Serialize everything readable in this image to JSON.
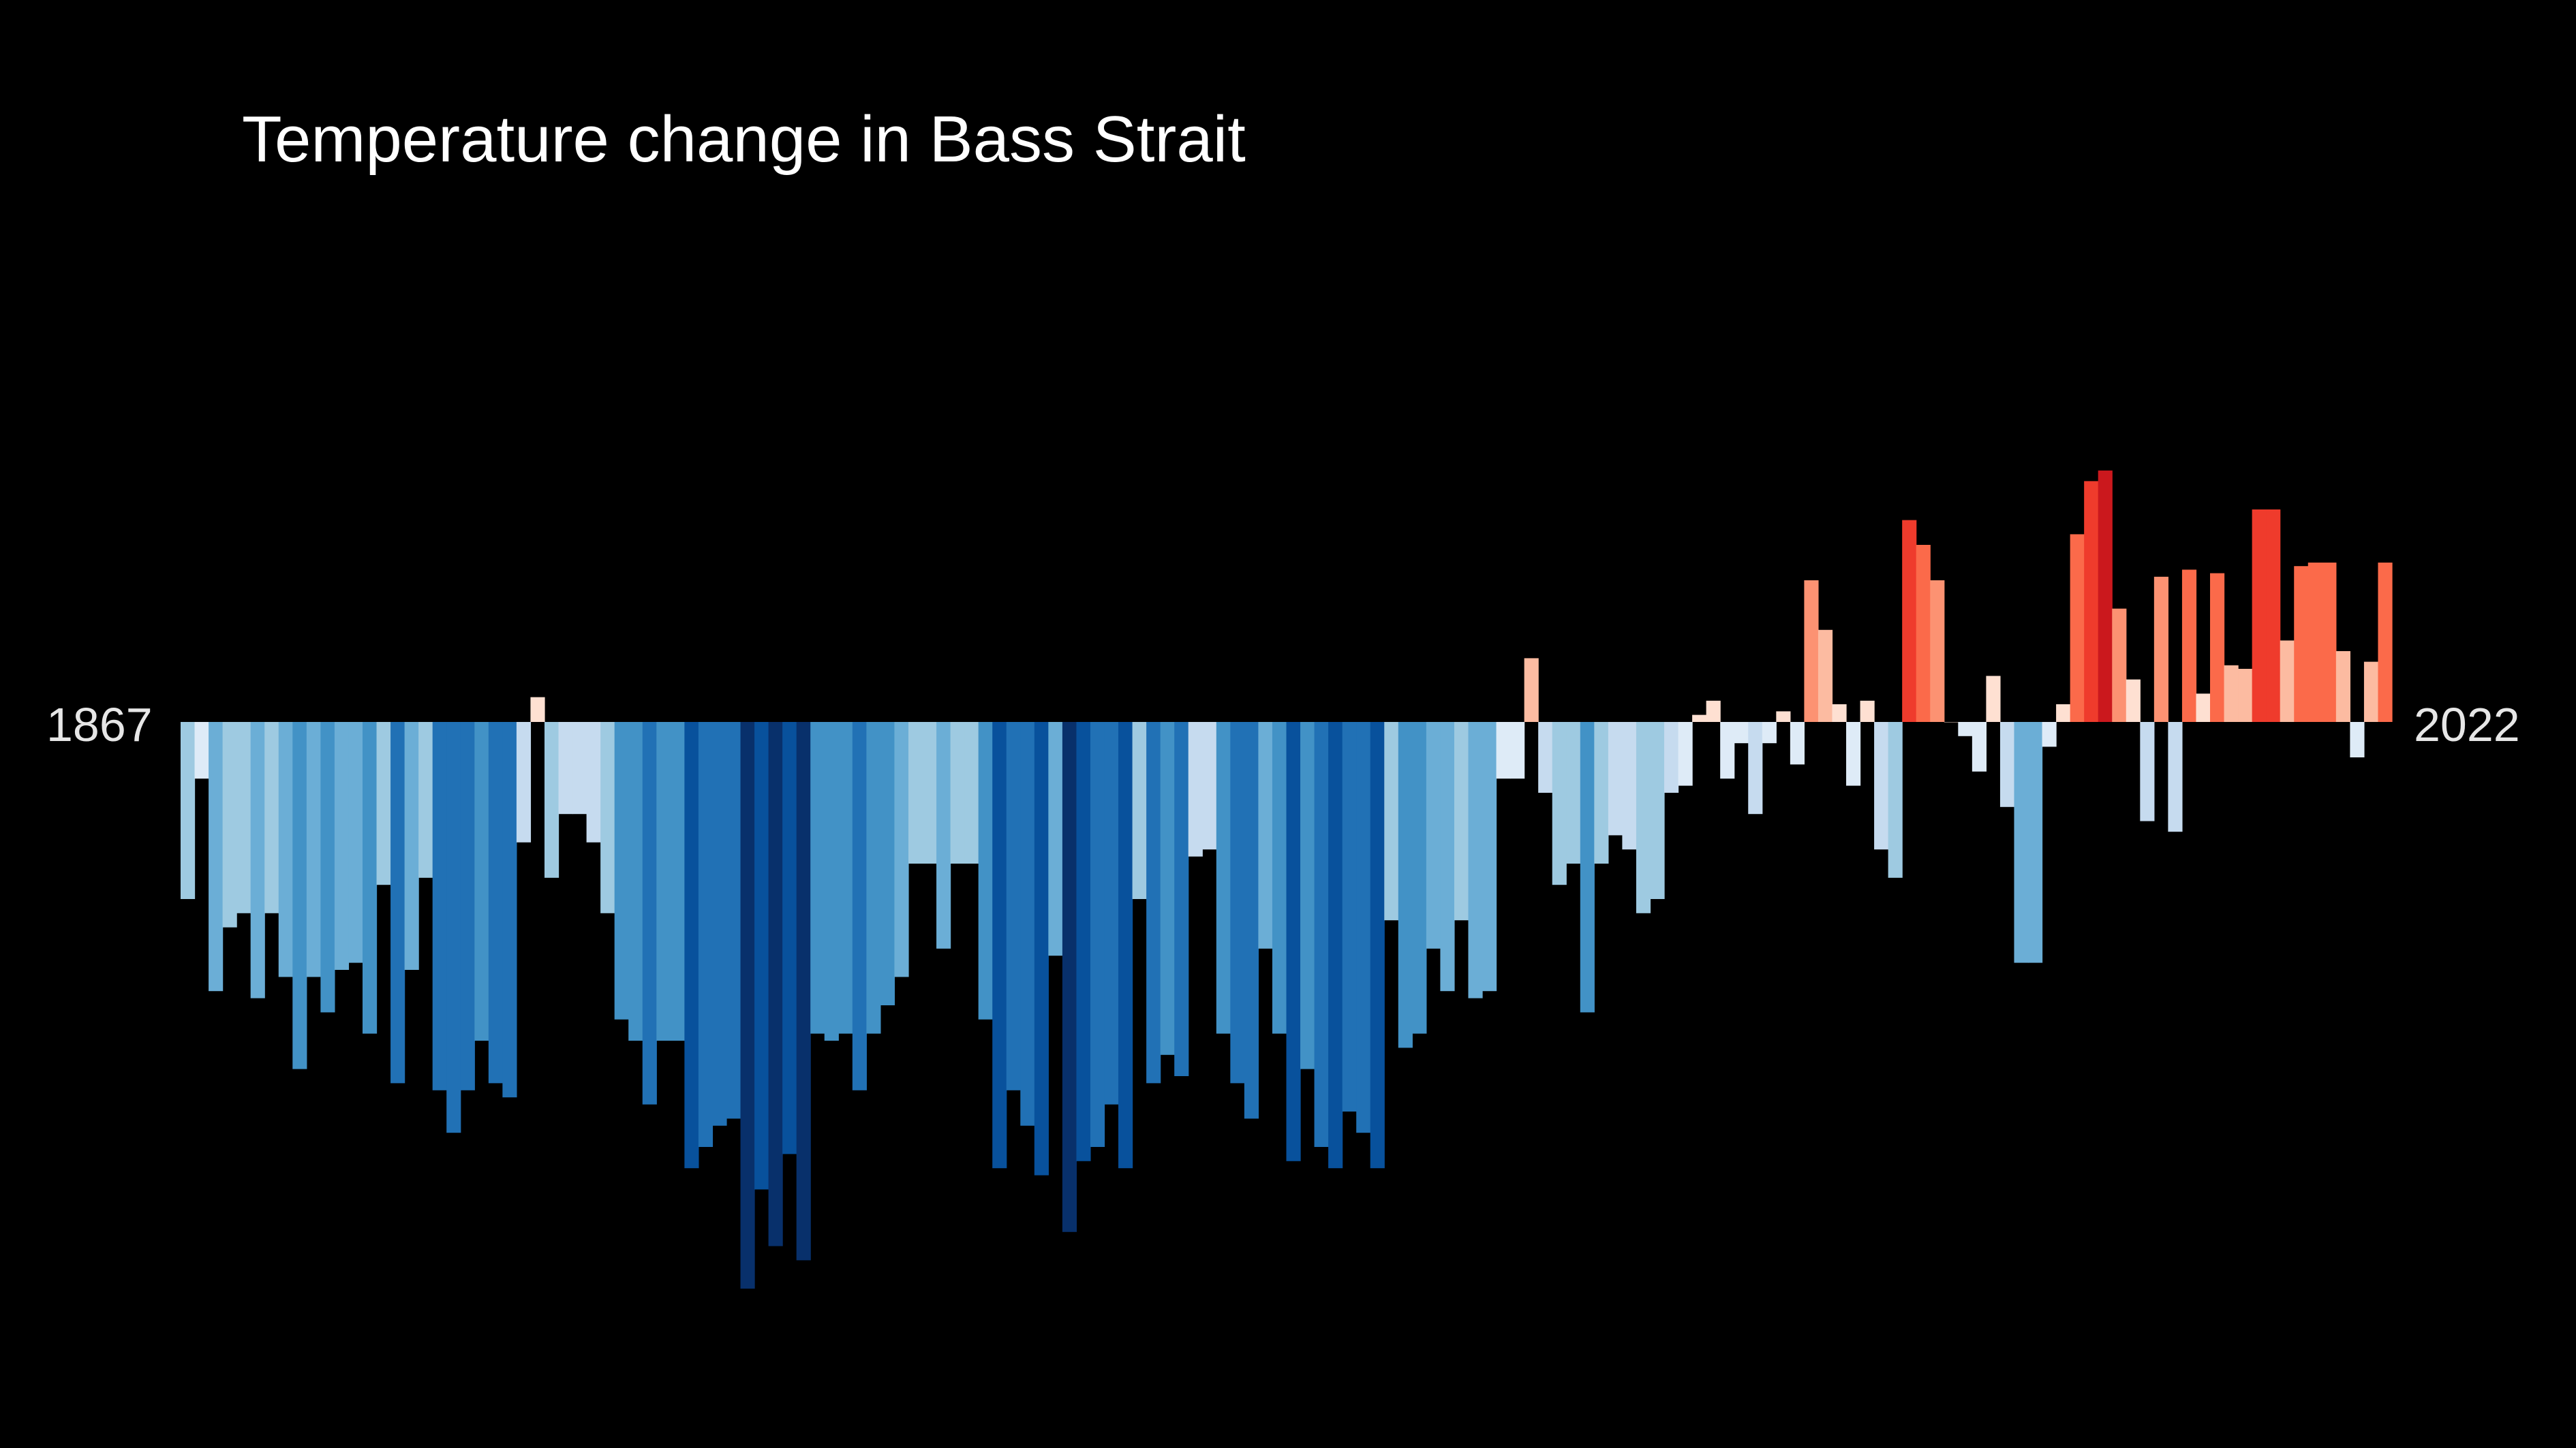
{
  "chart_data": {
    "type": "bar",
    "title": "Temperature change in Bass Strait",
    "start_year": "1867",
    "end_year": "2022",
    "x": {
      "start": 1867,
      "end": 2022
    },
    "ylim": [
      -0.8,
      0.34
    ],
    "grid": false,
    "legend": "none",
    "values": [
      -0.25,
      -0.08,
      -0.38,
      -0.29,
      -0.27,
      -0.39,
      -0.27,
      -0.36,
      -0.49,
      -0.36,
      -0.41,
      -0.35,
      -0.34,
      -0.44,
      -0.23,
      -0.51,
      -0.35,
      -0.22,
      -0.52,
      -0.58,
      -0.52,
      -0.45,
      -0.51,
      -0.53,
      -0.17,
      0.035,
      -0.22,
      -0.13,
      -0.13,
      -0.17,
      -0.27,
      -0.42,
      -0.45,
      -0.54,
      -0.45,
      -0.45,
      -0.63,
      -0.6,
      -0.57,
      -0.56,
      -0.8,
      -0.66,
      -0.74,
      -0.61,
      -0.76,
      -0.44,
      -0.45,
      -0.44,
      -0.52,
      -0.44,
      -0.4,
      -0.36,
      -0.2,
      -0.2,
      -0.32,
      -0.2,
      -0.2,
      -0.42,
      -0.63,
      -0.52,
      -0.57,
      -0.64,
      -0.33,
      -0.72,
      -0.62,
      -0.6,
      -0.54,
      -0.63,
      -0.25,
      -0.51,
      -0.47,
      -0.5,
      -0.19,
      -0.18,
      -0.44,
      -0.51,
      -0.56,
      -0.32,
      -0.44,
      -0.62,
      -0.49,
      -0.6,
      -0.63,
      -0.55,
      -0.58,
      -0.63,
      -0.28,
      -0.46,
      -0.44,
      -0.32,
      -0.38,
      -0.28,
      -0.39,
      -0.38,
      -0.08,
      -0.08,
      0.09,
      -0.1,
      -0.23,
      -0.2,
      -0.41,
      -0.2,
      -0.16,
      -0.18,
      -0.27,
      -0.25,
      -0.1,
      -0.09,
      0.01,
      0.03,
      -0.08,
      -0.03,
      -0.13,
      -0.03,
      0.015,
      -0.06,
      0.2,
      0.13,
      0.025,
      -0.09,
      0.03,
      -0.18,
      -0.22,
      0.285,
      0.25,
      0.2,
      0.0,
      -0.02,
      -0.07,
      0.065,
      -0.12,
      -0.34,
      -0.34,
      -0.035,
      0.025,
      0.265,
      0.34,
      0.355,
      0.16,
      0.06,
      -0.14,
      0.205,
      -0.155,
      0.215,
      0.04,
      0.21,
      0.08,
      0.075,
      0.3,
      0.3,
      0.115,
      0.22,
      0.225,
      0.225,
      0.1,
      -0.05,
      0.085,
      0.225
    ]
  }
}
